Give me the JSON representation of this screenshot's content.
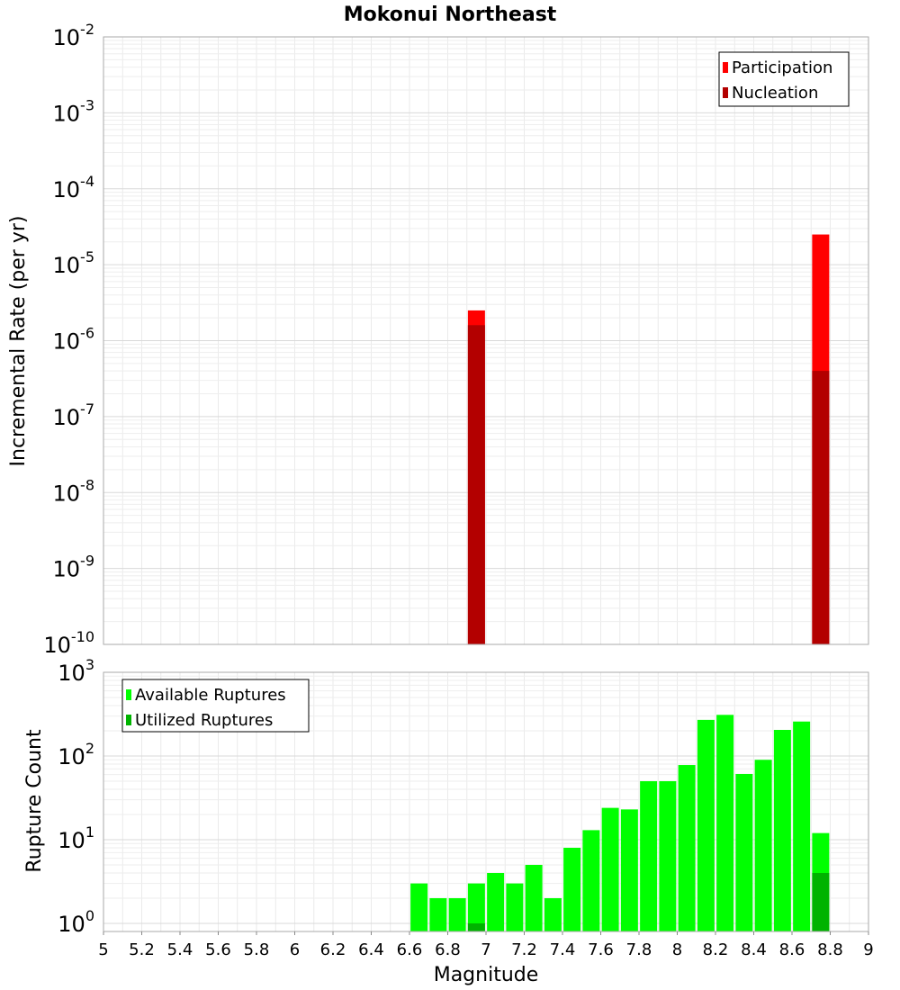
{
  "chart_data": [
    {
      "type": "bar",
      "title": "Mokonui Northeast",
      "xlabel": "",
      "ylabel": "Incremental Rate (per yr)",
      "yscale": "log",
      "ylim": [
        1e-10,
        0.01
      ],
      "xlim": [
        5,
        9
      ],
      "legend_position": "top-right",
      "series": [
        {
          "name": "Participation",
          "color": "#ff0000",
          "x": [
            6.95,
            8.75
          ],
          "values": [
            2.5e-06,
            2.5e-05
          ]
        },
        {
          "name": "Nucleation",
          "color": "#b30000",
          "x": [
            6.95,
            8.75
          ],
          "values": [
            1.6e-06,
            4e-07
          ]
        }
      ]
    },
    {
      "type": "bar",
      "title": "",
      "xlabel": "Magnitude",
      "ylabel": "Rupture Count",
      "yscale": "log",
      "ylim": [
        0.8,
        1000
      ],
      "xlim": [
        5,
        9
      ],
      "legend_position": "top-left",
      "x_ticks": [
        "5",
        "5.2",
        "5.4",
        "5.6",
        "5.8",
        "6",
        "6.2",
        "6.4",
        "6.6",
        "6.8",
        "7",
        "7.2",
        "7.4",
        "7.6",
        "7.8",
        "8",
        "8.2",
        "8.4",
        "8.6",
        "8.8",
        "9"
      ],
      "series": [
        {
          "name": "Available Ruptures",
          "color": "#00ff00",
          "x": [
            6.65,
            6.75,
            6.85,
            6.95,
            7.05,
            7.15,
            7.25,
            7.35,
            7.45,
            7.55,
            7.65,
            7.75,
            7.85,
            7.95,
            8.05,
            8.15,
            8.25,
            8.35,
            8.45,
            8.55,
            8.65,
            8.75
          ],
          "values": [
            3,
            2,
            2,
            3,
            4,
            3,
            5,
            2,
            8,
            13,
            24,
            23,
            50,
            50,
            78,
            270,
            310,
            61,
            90,
            205,
            258,
            12
          ]
        },
        {
          "name": "Utilized Ruptures",
          "color": "#00b300",
          "x": [
            6.95,
            8.75
          ],
          "values": [
            1,
            4
          ]
        }
      ]
    }
  ]
}
